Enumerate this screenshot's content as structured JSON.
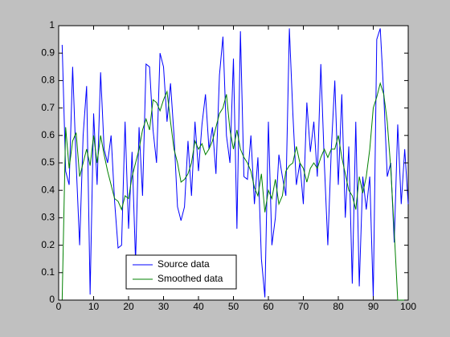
{
  "chart_data": {
    "type": "line",
    "x": [
      1,
      2,
      3,
      4,
      5,
      6,
      7,
      8,
      9,
      10,
      11,
      12,
      13,
      14,
      15,
      16,
      17,
      18,
      19,
      20,
      21,
      22,
      23,
      24,
      25,
      26,
      27,
      28,
      29,
      30,
      31,
      32,
      33,
      34,
      35,
      36,
      37,
      38,
      39,
      40,
      41,
      42,
      43,
      44,
      45,
      46,
      47,
      48,
      49,
      50,
      51,
      52,
      53,
      54,
      55,
      56,
      57,
      58,
      59,
      60,
      61,
      62,
      63,
      64,
      65,
      66,
      67,
      68,
      69,
      70,
      71,
      72,
      73,
      74,
      75,
      76,
      77,
      78,
      79,
      80,
      81,
      82,
      83,
      84,
      85,
      86,
      87,
      88,
      89,
      90,
      91,
      92,
      93,
      94,
      95,
      96,
      97,
      98,
      99,
      100
    ],
    "series": [
      {
        "name": "Source data",
        "color": "#0000ff",
        "values": [
          0.93,
          0.47,
          0.42,
          0.85,
          0.5,
          0.2,
          0.6,
          0.78,
          0.02,
          0.68,
          0.42,
          0.83,
          0.55,
          0.5,
          0.6,
          0.36,
          0.19,
          0.2,
          0.65,
          0.26,
          0.54,
          0.14,
          0.63,
          0.38,
          0.86,
          0.85,
          0.62,
          0.5,
          0.9,
          0.85,
          0.65,
          0.79,
          0.6,
          0.34,
          0.29,
          0.34,
          0.58,
          0.38,
          0.65,
          0.47,
          0.64,
          0.75,
          0.55,
          0.63,
          0.46,
          0.82,
          0.96,
          0.6,
          0.5,
          0.88,
          0.26,
          0.98,
          0.45,
          0.44,
          0.6,
          0.35,
          0.52,
          0.15,
          0.01,
          0.65,
          0.2,
          0.3,
          0.53,
          0.45,
          0.38,
          0.99,
          0.68,
          0.42,
          0.5,
          0.35,
          0.72,
          0.54,
          0.65,
          0.45,
          0.86,
          0.5,
          0.2,
          0.55,
          0.8,
          0.42,
          0.75,
          0.3,
          0.56,
          0.06,
          0.65,
          0.05,
          0.45,
          0.33,
          0.45,
          0.01,
          0.95,
          0.99,
          0.75,
          0.45,
          0.5,
          0.21,
          0.64,
          0.35,
          0.55,
          0.35
        ]
      },
      {
        "name": "Smoothed data",
        "color": "#008000",
        "values": [
          0,
          0.63,
          0.48,
          0.58,
          0.61,
          0.45,
          0.5,
          0.55,
          0.49,
          0.6,
          0.5,
          0.6,
          0.53,
          0.47,
          0.42,
          0.37,
          0.36,
          0.33,
          0.38,
          0.37,
          0.45,
          0.5,
          0.55,
          0.62,
          0.66,
          0.62,
          0.73,
          0.72,
          0.69,
          0.73,
          0.76,
          0.65,
          0.55,
          0.5,
          0.43,
          0.44,
          0.46,
          0.5,
          0.58,
          0.55,
          0.57,
          0.53,
          0.55,
          0.58,
          0.63,
          0.68,
          0.7,
          0.75,
          0.62,
          0.55,
          0.62,
          0.55,
          0.52,
          0.5,
          0.47,
          0.41,
          0.38,
          0.46,
          0.32,
          0.4,
          0.37,
          0.44,
          0.35,
          0.38,
          0.47,
          0.49,
          0.5,
          0.56,
          0.5,
          0.48,
          0.43,
          0.48,
          0.5,
          0.48,
          0.52,
          0.55,
          0.52,
          0.55,
          0.55,
          0.6,
          0.52,
          0.46,
          0.4,
          0.38,
          0.33,
          0.45,
          0.39,
          0.45,
          0.55,
          0.7,
          0.74,
          0.79,
          0.75,
          0.65,
          0.48,
          0.25,
          0,
          0,
          0,
          0
        ]
      }
    ],
    "xlim": [
      0,
      100
    ],
    "xticks": [
      0,
      10,
      20,
      30,
      40,
      50,
      60,
      70,
      80,
      90,
      100
    ],
    "ylim": [
      0,
      1
    ],
    "yticks": [
      0,
      0.1,
      0.2,
      0.3,
      0.4,
      0.5,
      0.6,
      0.7,
      0.8,
      0.9,
      1
    ]
  }
}
